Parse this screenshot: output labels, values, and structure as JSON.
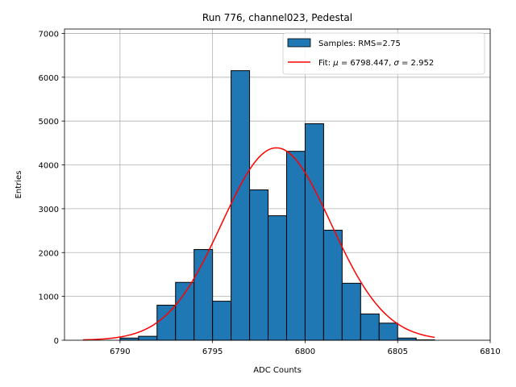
{
  "chart_data": {
    "type": "bar",
    "title": "Run 776, channel023, Pedestal",
    "xlabel": "ADC Counts",
    "ylabel": "Entries",
    "xlim": [
      6787,
      6810
    ],
    "ylim": [
      0,
      7100
    ],
    "xticks": [
      6790,
      6795,
      6800,
      6805,
      6810
    ],
    "yticks": [
      0,
      1000,
      2000,
      3000,
      4000,
      5000,
      6000,
      7000
    ],
    "grid": true,
    "legend_position": "top-right",
    "bin_width": 1,
    "bins": [
      {
        "left": 6790,
        "count": 50
      },
      {
        "left": 6791,
        "count": 90
      },
      {
        "left": 6792,
        "count": 800
      },
      {
        "left": 6793,
        "count": 1320
      },
      {
        "left": 6794,
        "count": 2070
      },
      {
        "left": 6795,
        "count": 890
      },
      {
        "left": 6796,
        "count": 6150
      },
      {
        "left": 6797,
        "count": 3430
      },
      {
        "left": 6798,
        "count": 2840
      },
      {
        "left": 6799,
        "count": 4310
      },
      {
        "left": 6800,
        "count": 4940
      },
      {
        "left": 6801,
        "count": 2510
      },
      {
        "left": 6802,
        "count": 1300
      },
      {
        "left": 6803,
        "count": 600
      },
      {
        "left": 6804,
        "count": 390
      },
      {
        "left": 6805,
        "count": 50
      },
      {
        "left": 6806,
        "count": 8
      }
    ],
    "fit": {
      "mu": 6798.447,
      "sigma": 2.952,
      "peak": 4390,
      "x_range": [
        6788,
        6807
      ]
    },
    "series": [
      {
        "name": "Samples: RMS=2.75",
        "color": "#1f77b4"
      },
      {
        "name": "Fit: μ = 6798.447, σ = 2.952",
        "color": "#ff0000"
      }
    ],
    "legend": {
      "samples_label": "Samples: RMS=2.75",
      "fit_label_prefix": "Fit: ",
      "fit_mu_symbol": "μ",
      "fit_mu_value": " = 6798.447, ",
      "fit_sigma_symbol": "σ",
      "fit_sigma_value": " = 2.952"
    }
  }
}
